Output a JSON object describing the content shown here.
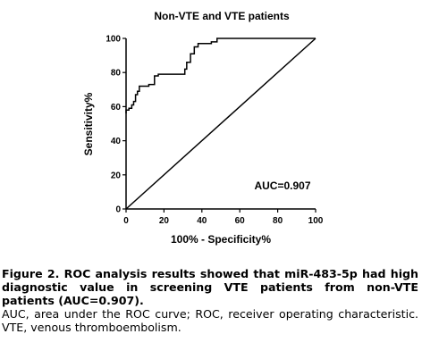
{
  "chart_data": {
    "type": "line",
    "title": "Non-VTE and VTE patients",
    "xlabel": "100% - Specificity%",
    "ylabel": "Sensitivity%",
    "xlim": [
      0,
      100
    ],
    "ylim": [
      0,
      100
    ],
    "x_ticks": [
      0,
      20,
      40,
      60,
      80,
      100
    ],
    "y_ticks": [
      0,
      20,
      40,
      60,
      80,
      100
    ],
    "annotation": "AUC=0.907",
    "series": [
      {
        "role": "roc-curve",
        "points": [
          [
            0,
            56
          ],
          [
            0,
            58
          ],
          [
            1.5,
            58
          ],
          [
            1.5,
            59
          ],
          [
            3,
            59
          ],
          [
            3,
            61
          ],
          [
            4,
            61
          ],
          [
            4,
            63
          ],
          [
            5,
            63
          ],
          [
            5,
            67
          ],
          [
            6,
            67
          ],
          [
            6,
            69
          ],
          [
            7,
            69
          ],
          [
            7,
            72
          ],
          [
            12,
            72
          ],
          [
            12,
            73
          ],
          [
            15,
            73
          ],
          [
            15,
            78
          ],
          [
            17,
            78
          ],
          [
            17,
            79
          ],
          [
            31,
            79
          ],
          [
            31,
            82
          ],
          [
            32,
            82
          ],
          [
            32,
            86
          ],
          [
            34,
            86
          ],
          [
            34,
            91
          ],
          [
            36,
            91
          ],
          [
            36,
            95
          ],
          [
            38,
            95
          ],
          [
            38,
            97
          ],
          [
            45,
            97
          ],
          [
            45,
            98
          ],
          [
            48,
            98
          ],
          [
            48,
            100
          ],
          [
            100,
            100
          ]
        ]
      },
      {
        "role": "reference-diagonal",
        "points": [
          [
            0,
            0
          ],
          [
            100,
            100
          ]
        ]
      }
    ]
  },
  "caption": {
    "title": "Figure 2. ROC analysis results showed that miR-483-5p had high diagnostic value in screening VTE patients from non-VTE patients (AUC=0.907).",
    "note": "AUC, area under the ROC curve; ROC, receiver operating characteristic. VTE, venous thromboembolism."
  }
}
